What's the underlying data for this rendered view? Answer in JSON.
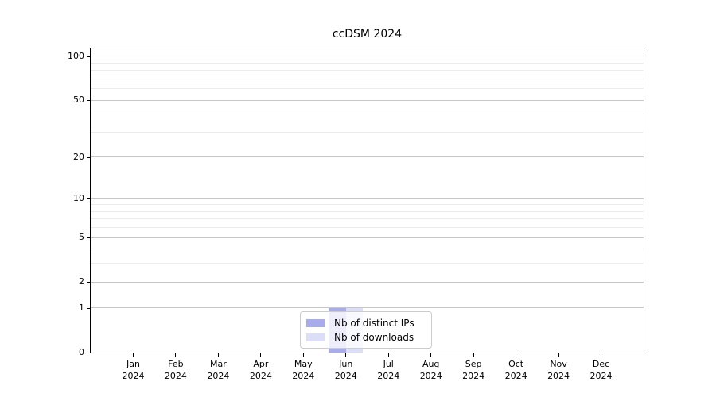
{
  "window": {
    "background": "#ffffff"
  },
  "chart_data": {
    "type": "bar",
    "title": "ccDSM 2024",
    "categories": [
      "Jan",
      "Feb",
      "Mar",
      "Apr",
      "May",
      "Jun",
      "Jul",
      "Aug",
      "Sep",
      "Oct",
      "Nov",
      "Dec"
    ],
    "x_year_label": "2024",
    "series": [
      {
        "name": "Nb of distinct IPs",
        "color": "#a9aceb",
        "values": [
          0,
          0,
          0,
          0,
          0,
          1,
          0,
          0,
          0,
          0,
          0,
          0
        ]
      },
      {
        "name": "Nb of downloads",
        "color": "#dcdef8",
        "values": [
          0,
          0,
          0,
          0,
          0,
          1,
          0,
          0,
          0,
          0,
          0,
          0
        ]
      }
    ],
    "yscale": "log1p",
    "ylim": [
      0,
      113
    ],
    "yticks": [
      0,
      1,
      2,
      5,
      10,
      20,
      50,
      100
    ],
    "yticks_minor": [
      3,
      4,
      6,
      7,
      8,
      9,
      30,
      40,
      60,
      70,
      80,
      90
    ],
    "grid": "horizontal major and minor",
    "legend_position": "lower center",
    "colors": {
      "grid_major": "#c6c6c6",
      "grid_minor": "#ececec",
      "spine": "#000000",
      "legend_border": "#cccccc"
    }
  }
}
